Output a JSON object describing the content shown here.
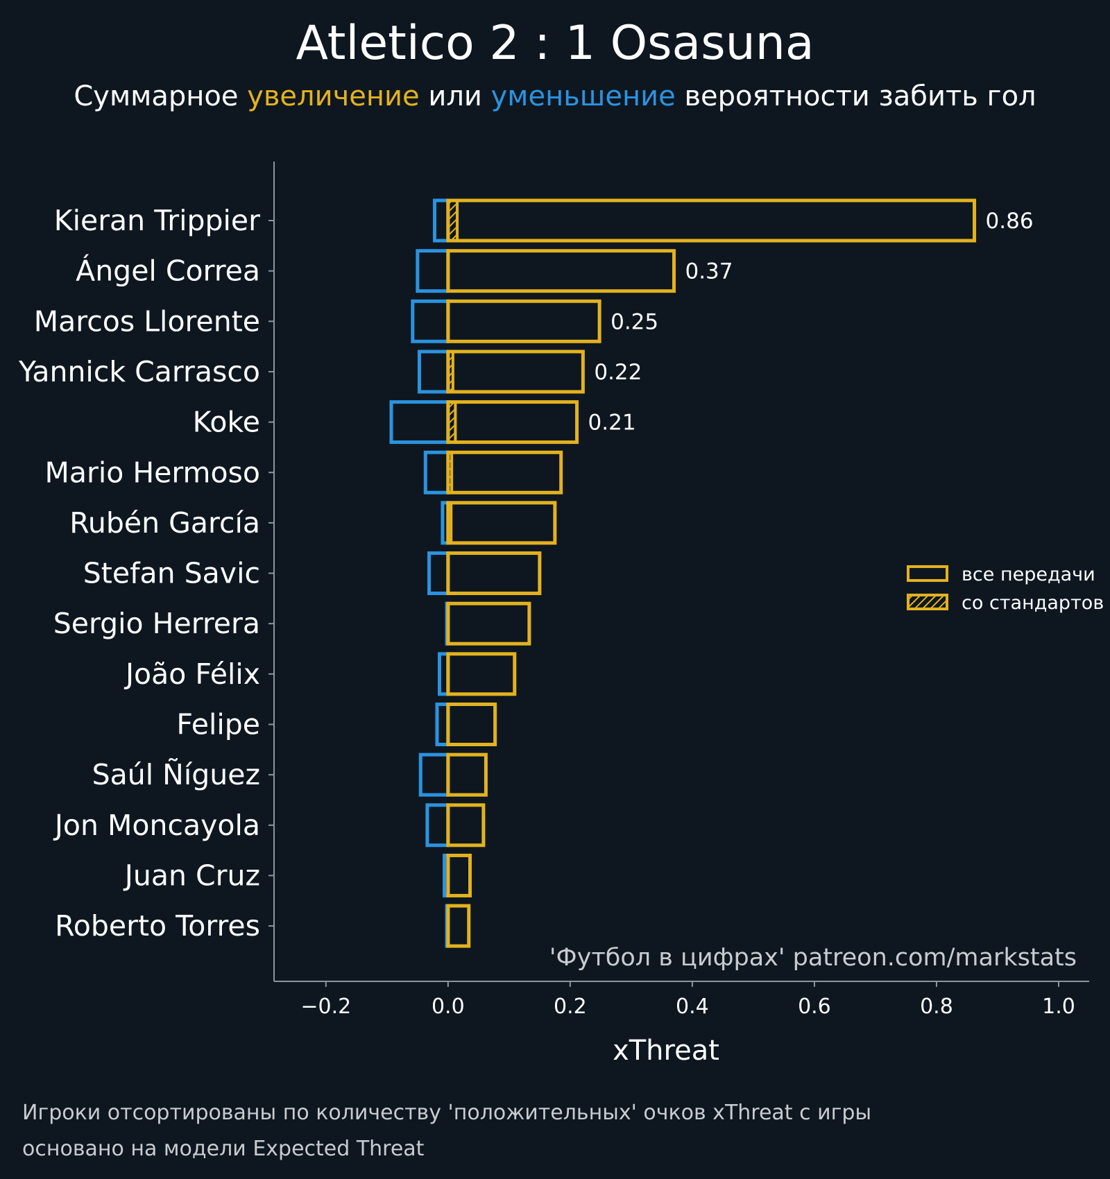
{
  "header": {
    "title": "Atletico 2 : 1 Osasuna",
    "subtitle_parts": [
      {
        "text": "Суммарное ",
        "color": "#ffffff"
      },
      {
        "text": "увеличение",
        "color": "#e3b21f"
      },
      {
        "text": " или ",
        "color": "#ffffff"
      },
      {
        "text": "уменьшение",
        "color": "#2b93e0"
      },
      {
        "text": " вероятности забить гол",
        "color": "#ffffff"
      }
    ]
  },
  "colors": {
    "background": "#0e1720",
    "positive": "#e3b21f",
    "negative": "#2b93e0",
    "axis": "#8a96a0"
  },
  "legend": {
    "placement": "right",
    "items": [
      {
        "label": "все передачи",
        "style": "outline"
      },
      {
        "label": "со стандартов",
        "style": "hatched"
      }
    ]
  },
  "credit": "'Футбол в цифрах' patreon.com/markstats",
  "footer_notes": [
    "Игроки отсортированы по количеству 'положительных' очков xThreat с игры",
    "основано на модели Expected Threat"
  ],
  "chart_data": {
    "type": "bar",
    "orientation": "horizontal",
    "xlabel": "xThreat",
    "xlim": [
      -0.285,
      1.05
    ],
    "xticks": [
      -0.2,
      0.0,
      0.2,
      0.4,
      0.6,
      0.8,
      1.0
    ],
    "xtick_labels": [
      "−0.2",
      "0.0",
      "0.2",
      "0.4",
      "0.6",
      "0.8",
      "1.0"
    ],
    "grid": false,
    "categories": [
      "Kieran Trippier",
      "Ángel Correa",
      "Marcos Llorente",
      "Yannick Carrasco",
      "Koke",
      "Mario Hermoso",
      "Rubén García",
      "Stefan Savic",
      "Sergio Herrera",
      "João Félix",
      "Felipe",
      "Saúl Ñíguez",
      "Jon Moncayola",
      "Juan Cruz",
      "Roberto Torres"
    ],
    "series": [
      {
        "name": "все передачи",
        "values": [
          0.862,
          0.37,
          0.248,
          0.221,
          0.211,
          0.185,
          0.175,
          0.15,
          0.133,
          0.109,
          0.077,
          0.062,
          0.058,
          0.036,
          0.034
        ]
      },
      {
        "values": [
          -0.022,
          -0.05,
          -0.058,
          -0.047,
          -0.093,
          -0.037,
          -0.009,
          -0.031,
          -0.002,
          -0.014,
          -0.018,
          -0.045,
          -0.034,
          -0.006,
          -0.002
        ]
      },
      {
        "name": "со стандартов",
        "values": [
          0.015,
          0.0,
          0.0,
          0.008,
          0.012,
          0.006,
          0.005,
          0.0,
          0.0,
          0.0,
          0.0,
          0.0,
          0.0,
          0.0,
          0.0
        ]
      }
    ],
    "value_labels": [
      "0.86",
      "0.37",
      "0.25",
      "0.22",
      "0.21",
      "",
      "",
      "",
      "",
      "",
      "",
      "",
      "",
      "",
      ""
    ]
  }
}
